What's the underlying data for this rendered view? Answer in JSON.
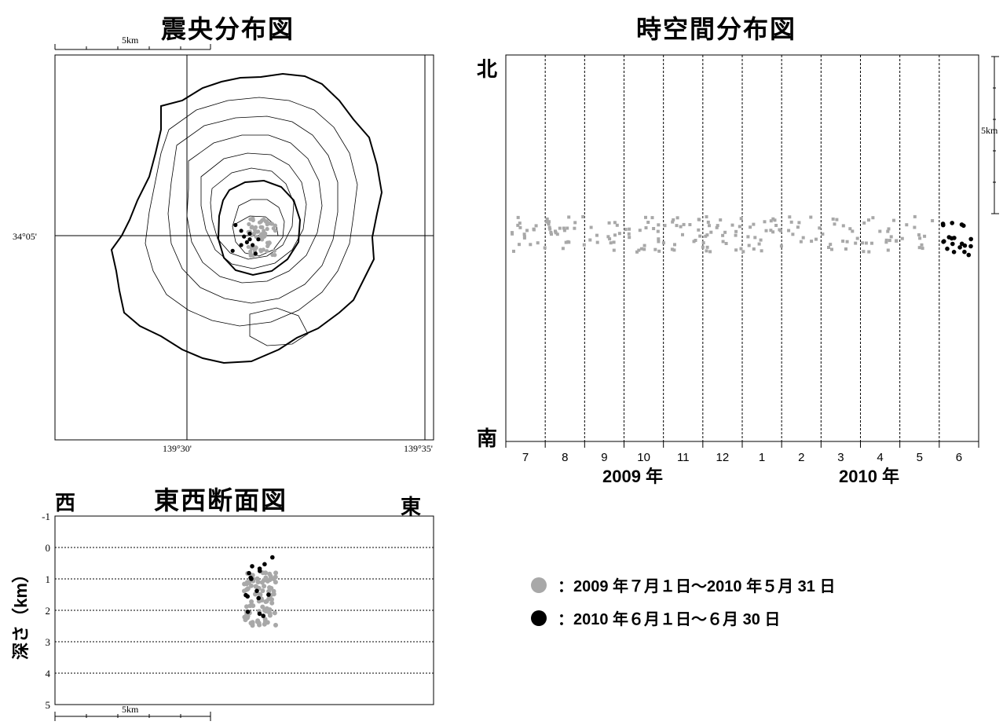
{
  "epicenter_map": {
    "title": "震央分布図",
    "scale_label": "5km",
    "lat_label": "34°05'",
    "lon_labels": [
      "139°30'",
      "139°35'"
    ]
  },
  "time_space": {
    "title": "時空間分布図",
    "north_label": "北",
    "south_label": "南",
    "scale_label": "5km",
    "years": [
      "2009 年",
      "2010 年"
    ]
  },
  "cross_section": {
    "title": "東西断面図",
    "west_label": "西",
    "east_label": "東",
    "ylabel": "深さ（km）",
    "scale_label": "5km"
  },
  "legend": [
    {
      "color": "#a8a8a8",
      "text": "：2009 年７月１日～2010 年５月 31 日"
    },
    {
      "color": "#000000",
      "text": "：2010 年６月１日～６月 30 日"
    }
  ],
  "chart_data": [
    {
      "type": "scatter",
      "title": "震央分布図",
      "xlabel": "",
      "ylabel": "",
      "x_ticks": [
        "139°30'",
        "139°35'"
      ],
      "y_ticks": [
        "34°05'"
      ],
      "series": [
        {
          "color": "#a8a8a8",
          "count_note": "",
          "points": [
            [
              139.515,
              34.086
            ],
            [
              139.517,
              34.085
            ],
            [
              139.519,
              34.083
            ],
            [
              139.521,
              34.082
            ],
            [
              139.523,
              34.084
            ],
            [
              139.52,
              34.08
            ],
            [
              139.522,
              34.079
            ],
            [
              139.518,
              34.081
            ],
            [
              139.524,
              34.081
            ],
            [
              139.516,
              34.083
            ],
            [
              139.525,
              34.079
            ],
            [
              139.52,
              34.077
            ]
          ]
        },
        {
          "color": "#000000",
          "count_note": "",
          "points": [
            [
              139.517,
              34.087
            ],
            [
              139.519,
              34.085
            ],
            [
              139.52,
              34.083
            ],
            [
              139.522,
              34.082
            ],
            [
              139.521,
              34.081
            ],
            [
              139.523,
              34.08
            ],
            [
              139.525,
              34.082
            ],
            [
              139.519,
              34.08
            ],
            [
              139.516,
              34.078
            ],
            [
              139.524,
              34.077
            ],
            [
              139.522,
              34.084
            ]
          ]
        }
      ]
    },
    {
      "type": "scatter",
      "title": "時空間分布図",
      "xlabel": "",
      "ylabel": "",
      "categories": [
        "7",
        "8",
        "9",
        "10",
        "11",
        "12",
        "1",
        "2",
        "3",
        "4",
        "5",
        "6"
      ],
      "year_labels": [
        "2009 年",
        "2010 年"
      ],
      "y_ticks": [
        "5km"
      ],
      "series": [
        {
          "color": "#a8a8a8",
          "description": "",
          "month_range": [
            0,
            11
          ],
          "y_center_frac": 0.455
        },
        {
          "color": "#000000",
          "description": "",
          "month_range": [
            11,
            12
          ],
          "y_center_frac": 0.455
        }
      ]
    },
    {
      "type": "scatter",
      "title": "東西断面図",
      "xlabel": "",
      "ylabel": "深さ（km）",
      "y_ticks": [
        "-1",
        "0",
        "1",
        "2",
        "3",
        "4",
        "5"
      ],
      "ylim": [
        -1,
        5
      ],
      "series": [
        {
          "color": "#a8a8a8",
          "depth_range_km": [
            0.8,
            2.5
          ]
        },
        {
          "color": "#000000",
          "depth_range_km": [
            0.3,
            2.3
          ]
        }
      ]
    }
  ]
}
